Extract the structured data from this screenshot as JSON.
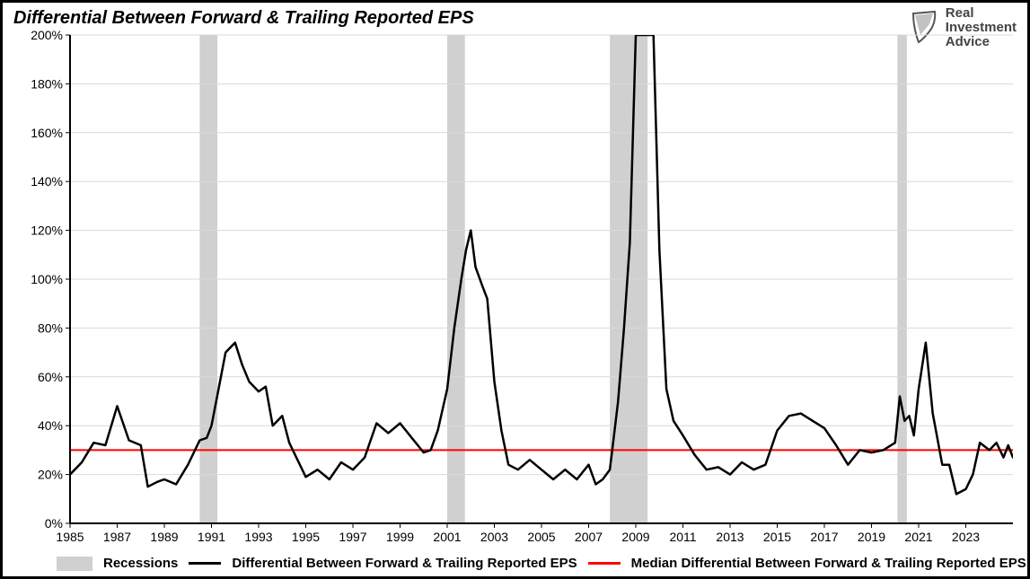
{
  "title": "Differential Between Forward & Trailing Reported EPS",
  "logo": {
    "line1": "Real",
    "line2": "Investment",
    "line3": "Advice"
  },
  "legend": {
    "recessions": "Recessions",
    "series": "Differential Between Forward & Trailing Reported EPS",
    "median": "Median Differential Between Forward & Trailing Reported EPS"
  },
  "chart": {
    "type": "line",
    "background_color": "#ffffff",
    "plot_border_color": "#000000",
    "plot_border_width": 3,
    "grid_color": "#d9d9d9",
    "grid_width": 1,
    "x": {
      "min": 1985,
      "max": 2025,
      "ticks": [
        1985,
        1987,
        1989,
        1991,
        1993,
        1995,
        1997,
        1999,
        2001,
        2003,
        2005,
        2007,
        2009,
        2011,
        2013,
        2015,
        2017,
        2019,
        2021,
        2023
      ],
      "tick_fontsize": 14,
      "label_color": "#000000"
    },
    "y": {
      "min": 0,
      "max": 200,
      "ticks": [
        0,
        20,
        40,
        60,
        80,
        100,
        120,
        140,
        160,
        180,
        200
      ],
      "tick_format_suffix": "%",
      "tick_fontsize": 14,
      "label_color": "#000000"
    },
    "recession_bands": {
      "fill": "#d0d0d0",
      "opacity": 1.0,
      "ranges": [
        [
          1990.5,
          1991.25
        ],
        [
          2001.0,
          2001.75
        ],
        [
          2007.9,
          2009.5
        ],
        [
          2020.1,
          2020.5
        ]
      ]
    },
    "median_line": {
      "value": 30,
      "color": "#ff0000",
      "width": 2
    },
    "series_line": {
      "color": "#000000",
      "width": 2.5,
      "points": [
        [
          1985.0,
          20
        ],
        [
          1985.5,
          25
        ],
        [
          1986.0,
          33
        ],
        [
          1986.5,
          32
        ],
        [
          1987.0,
          48
        ],
        [
          1987.5,
          34
        ],
        [
          1988.0,
          32
        ],
        [
          1988.3,
          15
        ],
        [
          1988.7,
          17
        ],
        [
          1989.0,
          18
        ],
        [
          1989.5,
          16
        ],
        [
          1990.0,
          24
        ],
        [
          1990.5,
          34
        ],
        [
          1990.8,
          35
        ],
        [
          1991.0,
          40
        ],
        [
          1991.3,
          55
        ],
        [
          1991.6,
          70
        ],
        [
          1992.0,
          74
        ],
        [
          1992.3,
          65
        ],
        [
          1992.6,
          58
        ],
        [
          1993.0,
          54
        ],
        [
          1993.3,
          56
        ],
        [
          1993.6,
          40
        ],
        [
          1994.0,
          44
        ],
        [
          1994.3,
          33
        ],
        [
          1994.6,
          27
        ],
        [
          1995.0,
          19
        ],
        [
          1995.5,
          22
        ],
        [
          1996.0,
          18
        ],
        [
          1996.5,
          25
        ],
        [
          1997.0,
          22
        ],
        [
          1997.5,
          27
        ],
        [
          1998.0,
          41
        ],
        [
          1998.5,
          37
        ],
        [
          1999.0,
          41
        ],
        [
          1999.5,
          35
        ],
        [
          2000.0,
          29
        ],
        [
          2000.3,
          30
        ],
        [
          2000.6,
          38
        ],
        [
          2001.0,
          55
        ],
        [
          2001.3,
          80
        ],
        [
          2001.6,
          100
        ],
        [
          2001.8,
          112
        ],
        [
          2002.0,
          120
        ],
        [
          2002.2,
          105
        ],
        [
          2002.5,
          97
        ],
        [
          2002.7,
          92
        ],
        [
          2003.0,
          58
        ],
        [
          2003.3,
          38
        ],
        [
          2003.6,
          24
        ],
        [
          2004.0,
          22
        ],
        [
          2004.5,
          26
        ],
        [
          2005.0,
          22
        ],
        [
          2005.5,
          18
        ],
        [
          2006.0,
          22
        ],
        [
          2006.5,
          18
        ],
        [
          2007.0,
          24
        ],
        [
          2007.3,
          16
        ],
        [
          2007.6,
          18
        ],
        [
          2007.9,
          22
        ],
        [
          2008.0,
          30
        ],
        [
          2008.25,
          50
        ],
        [
          2008.5,
          80
        ],
        [
          2008.75,
          115
        ],
        [
          2009.0,
          200
        ],
        [
          2009.25,
          360
        ],
        [
          2009.5,
          260
        ],
        [
          2009.75,
          200
        ],
        [
          2010.0,
          112
        ],
        [
          2010.3,
          55
        ],
        [
          2010.6,
          42
        ],
        [
          2011.0,
          36
        ],
        [
          2011.5,
          28
        ],
        [
          2012.0,
          22
        ],
        [
          2012.5,
          23
        ],
        [
          2013.0,
          20
        ],
        [
          2013.5,
          25
        ],
        [
          2014.0,
          22
        ],
        [
          2014.5,
          24
        ],
        [
          2015.0,
          38
        ],
        [
          2015.5,
          44
        ],
        [
          2016.0,
          45
        ],
        [
          2016.5,
          42
        ],
        [
          2017.0,
          39
        ],
        [
          2017.5,
          32
        ],
        [
          2018.0,
          24
        ],
        [
          2018.5,
          30
        ],
        [
          2019.0,
          29
        ],
        [
          2019.5,
          30
        ],
        [
          2020.0,
          33
        ],
        [
          2020.2,
          52
        ],
        [
          2020.4,
          42
        ],
        [
          2020.6,
          44
        ],
        [
          2020.8,
          36
        ],
        [
          2021.0,
          55
        ],
        [
          2021.3,
          74
        ],
        [
          2021.6,
          45
        ],
        [
          2022.0,
          24
        ],
        [
          2022.3,
          24
        ],
        [
          2022.6,
          12
        ],
        [
          2023.0,
          14
        ],
        [
          2023.3,
          20
        ],
        [
          2023.6,
          33
        ],
        [
          2024.0,
          30
        ],
        [
          2024.3,
          33
        ],
        [
          2024.6,
          27
        ],
        [
          2024.8,
          32
        ],
        [
          2025.0,
          27
        ]
      ]
    }
  }
}
